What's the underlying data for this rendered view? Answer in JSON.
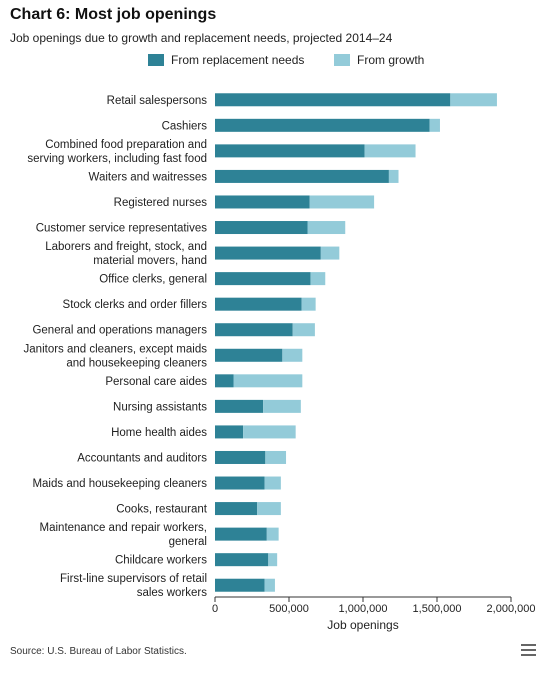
{
  "title": "Chart 6: Most job openings",
  "subtitle": "Job openings due to growth and replacement needs, projected 2014–24",
  "source": "Source: U.S. Bureau of Labor Statistics.",
  "colors": {
    "replacement": "#2e8296",
    "growth": "#93cbd9",
    "axis": "#333333"
  },
  "chart_data": {
    "type": "bar",
    "orientation": "horizontal",
    "stacked": true,
    "title": "Chart 6: Most job openings",
    "subtitle": "Job openings due to growth and replacement needs, projected 2014–24",
    "xlabel": "Job openings",
    "ylabel": "",
    "xlim": [
      0,
      2000000
    ],
    "x_ticks": [
      0,
      500000,
      1000000,
      1500000,
      2000000
    ],
    "x_tick_labels": [
      "0",
      "500,000",
      "1,000,000",
      "1,500,000",
      "2,000,000"
    ],
    "legend_position": "top-center",
    "grid": false,
    "categories": [
      [
        "Retail salespersons"
      ],
      [
        "Cashiers"
      ],
      [
        "Combined food preparation and",
        "serving workers, including fast food"
      ],
      [
        "Waiters and waitresses"
      ],
      [
        "Registered nurses"
      ],
      [
        "Customer service representatives"
      ],
      [
        "Laborers and freight, stock, and",
        "material movers, hand"
      ],
      [
        "Office clerks, general"
      ],
      [
        "Stock clerks and order fillers"
      ],
      [
        "General and operations managers"
      ],
      [
        "Janitors and cleaners, except maids",
        "and housekeeping cleaners"
      ],
      [
        "Personal care aides"
      ],
      [
        "Nursing assistants"
      ],
      [
        "Home health aides"
      ],
      [
        "Accountants and auditors"
      ],
      [
        "Maids and housekeeping cleaners"
      ],
      [
        "Cooks, restaurant"
      ],
      [
        "Maintenance and repair workers,",
        "general"
      ],
      [
        "Childcare workers"
      ],
      [
        "First-line supervisors of retail",
        "sales workers"
      ]
    ],
    "series": [
      {
        "name": "From replacement needs",
        "values": [
          1590000,
          1450000,
          1010000,
          1175000,
          640000,
          625000,
          715000,
          645000,
          585000,
          525000,
          455000,
          125000,
          325000,
          190000,
          340000,
          335000,
          285000,
          350000,
          360000,
          335000
        ]
      },
      {
        "name": "From growth",
        "values": [
          315000,
          70000,
          345000,
          65000,
          435000,
          255000,
          125000,
          100000,
          95000,
          150000,
          135000,
          465000,
          255000,
          355000,
          140000,
          110000,
          160000,
          80000,
          60000,
          70000
        ]
      }
    ]
  }
}
